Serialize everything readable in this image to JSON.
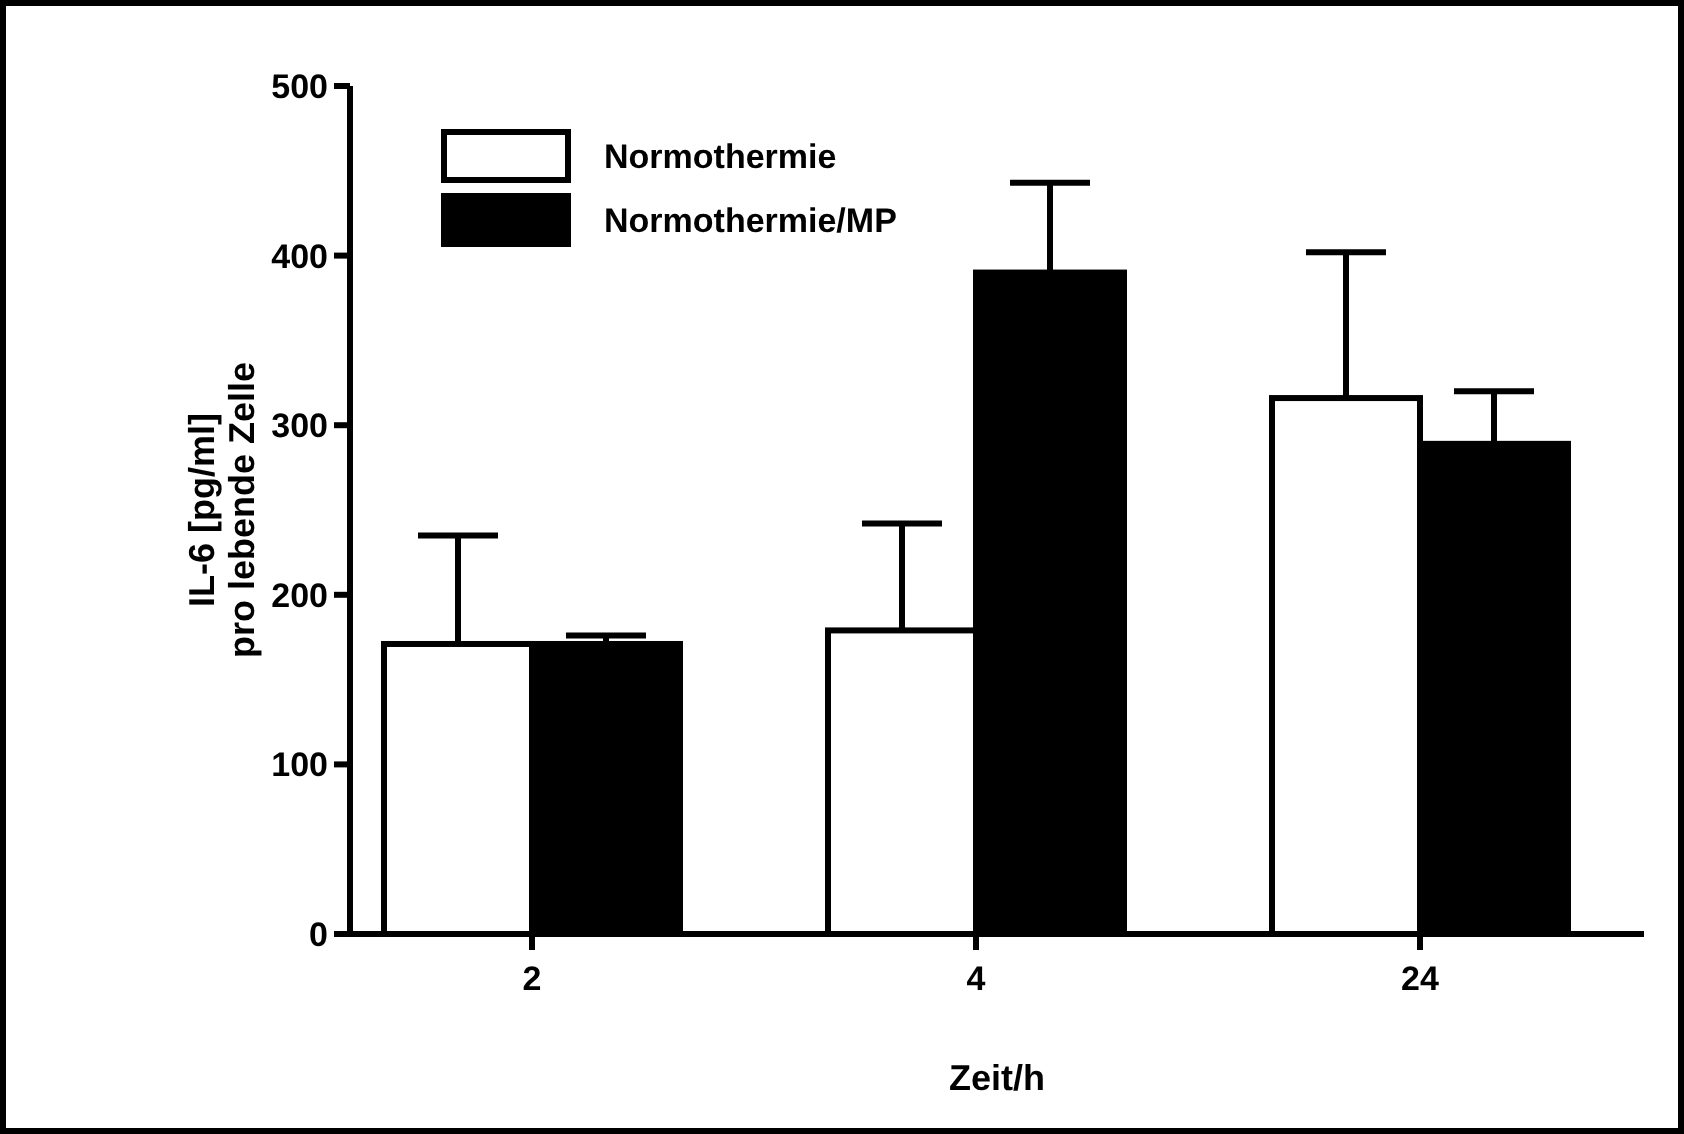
{
  "chart_data": {
    "type": "bar",
    "xlabel": "Zeit/h",
    "ylabel": "IL-6 [pg/ml]\npro lebende Zelle",
    "categories": [
      "2",
      "4",
      "24"
    ],
    "series": [
      {
        "name": "Normothermie",
        "color": "#ffffff",
        "values": [
          171,
          179,
          316
        ],
        "errors": [
          [
            171,
            235
          ],
          [
            179,
            242
          ],
          [
            316,
            402
          ]
        ]
      },
      {
        "name": "Normothermie/MP",
        "color": "#000000",
        "values": [
          171,
          390,
          289
        ],
        "errors": [
          [
            171,
            176
          ],
          [
            390,
            443
          ],
          [
            289,
            320
          ]
        ]
      }
    ],
    "ylim": [
      0,
      500
    ],
    "yticks": [
      0,
      100,
      200,
      300,
      400,
      500
    ],
    "legend": "top left",
    "grid": false
  }
}
